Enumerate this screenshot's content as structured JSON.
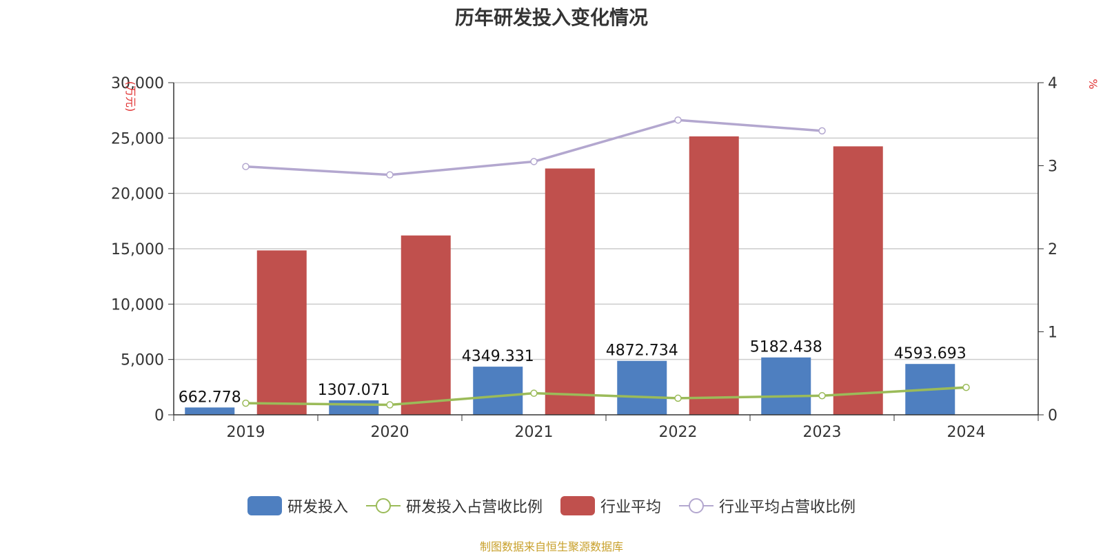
{
  "chart_data": {
    "type": "bar",
    "title": "历年研发投入变化情况",
    "categories": [
      "2019",
      "2020",
      "2021",
      "2022",
      "2023",
      "2024"
    ],
    "ylabel_left": "(万元)",
    "ylabel_right": "%",
    "ylim_left": [
      0,
      30000
    ],
    "ylim_right": [
      0,
      4
    ],
    "yticks_left": [
      "0",
      "5,000",
      "10,000",
      "15,000",
      "20,000",
      "25,000",
      "30,000"
    ],
    "yticks_right": [
      "0",
      "1",
      "2",
      "3",
      "4"
    ],
    "grid": true,
    "legend_position": "bottom",
    "series": [
      {
        "name": "研发投入",
        "type": "bar",
        "axis": "left",
        "color": "#4e7fc0",
        "values": [
          662.778,
          1307.071,
          4349.331,
          4872.734,
          5182.438,
          4593.693
        ],
        "labels": [
          "662.778",
          "1307.071",
          "4349.331",
          "4872.734",
          "5182.438",
          "4593.693"
        ]
      },
      {
        "name": "研发投入占营收比例",
        "type": "line",
        "axis": "right",
        "color": "#9bbb59",
        "values": [
          0.14,
          0.12,
          0.26,
          0.2,
          0.23,
          0.33
        ]
      },
      {
        "name": "行业平均",
        "type": "bar",
        "axis": "left",
        "color": "#c0504d",
        "values": [
          14850,
          16200,
          22250,
          25150,
          24250,
          null
        ]
      },
      {
        "name": "行业平均占营收比例",
        "type": "line",
        "axis": "right",
        "color": "#b3a7cf",
        "values": [
          2.99,
          2.89,
          3.05,
          3.55,
          3.42,
          null
        ]
      }
    ]
  },
  "source": "制图数据来自恒生聚源数据库"
}
